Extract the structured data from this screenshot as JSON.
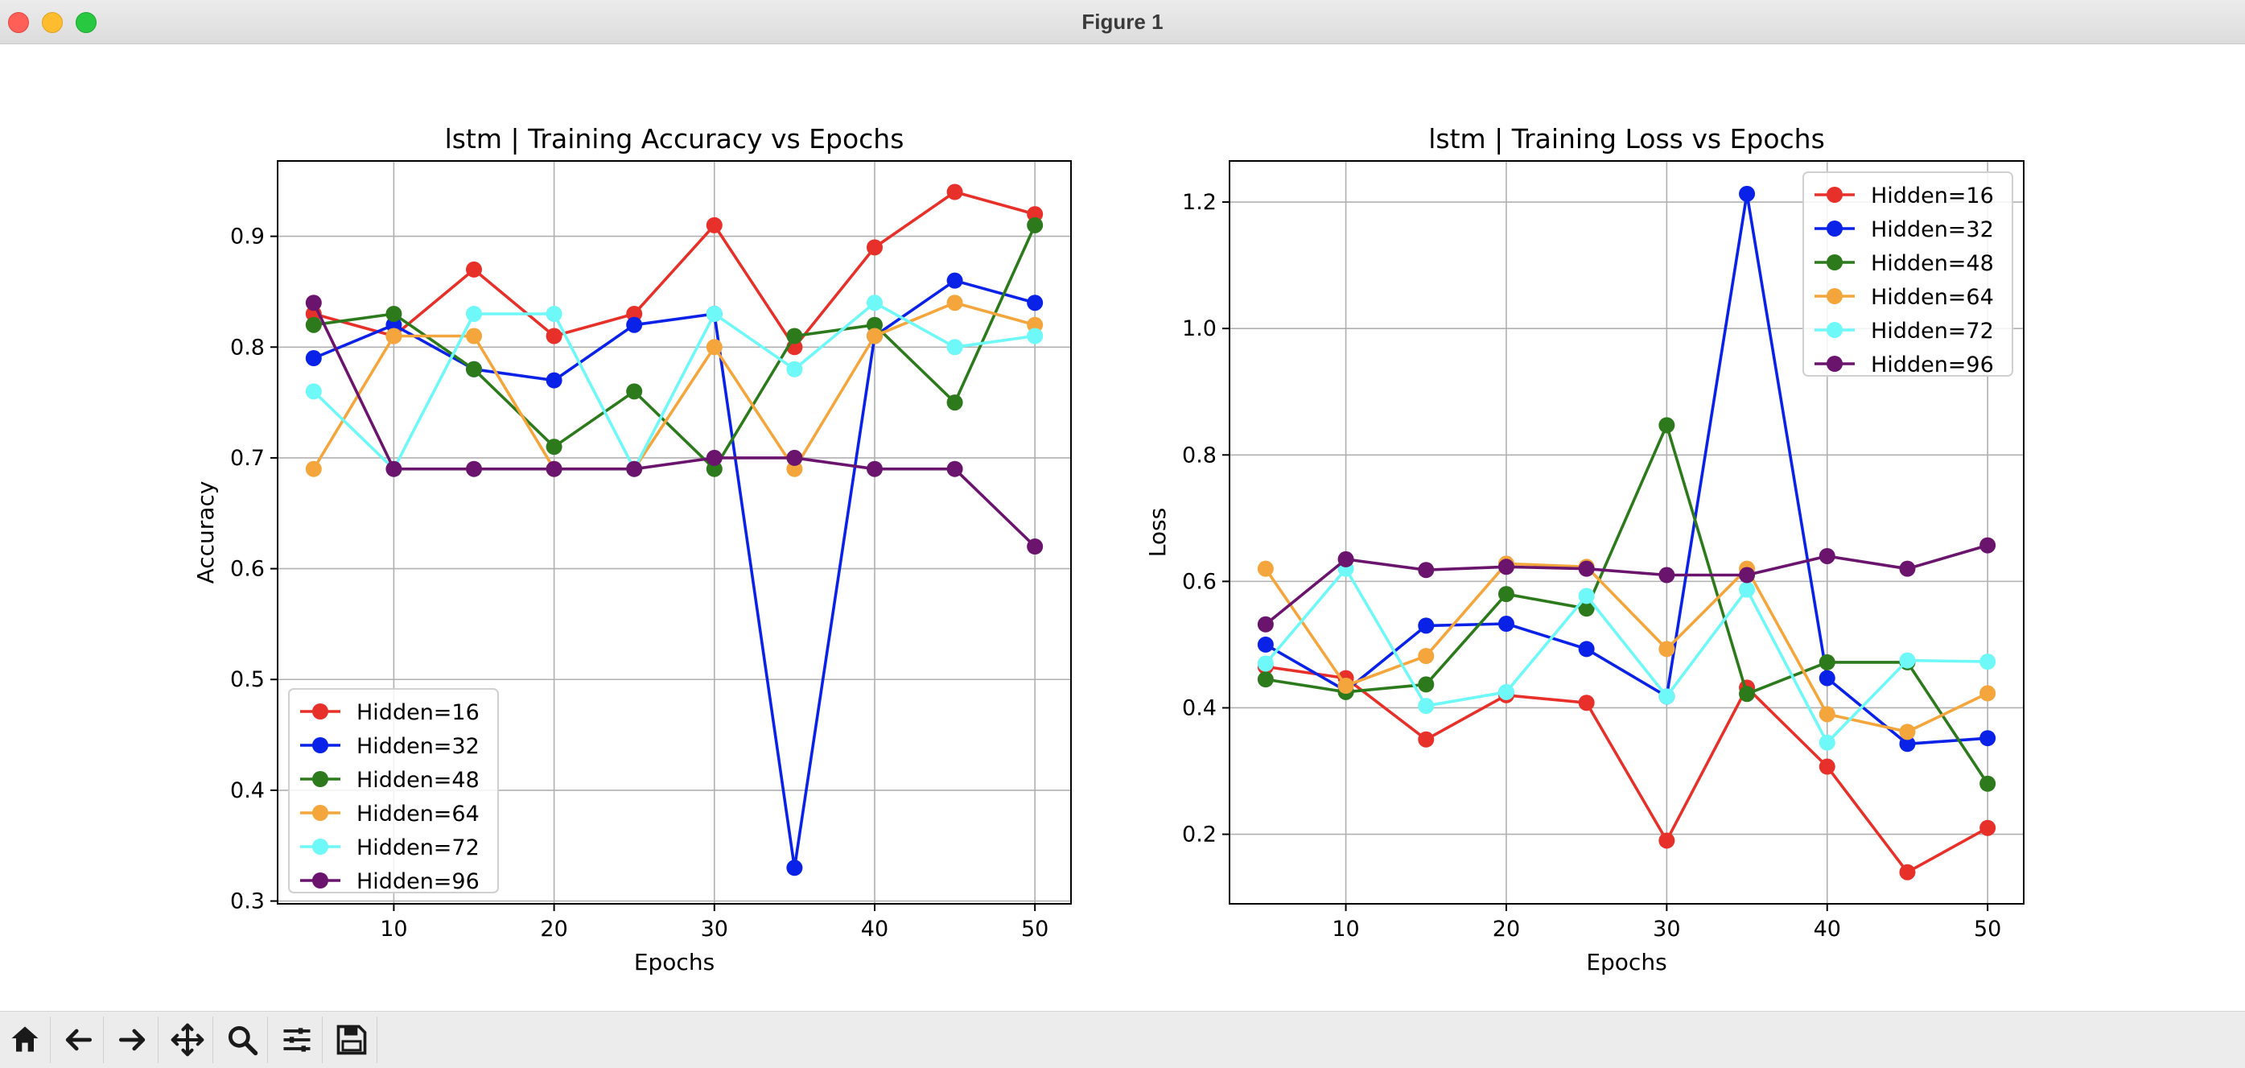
{
  "window": {
    "title": "Figure 1"
  },
  "toolbar": {
    "buttons": [
      {
        "name": "home-button",
        "icon": "home-icon"
      },
      {
        "name": "back-button",
        "icon": "arrow-left-icon"
      },
      {
        "name": "forward-button",
        "icon": "arrow-right-icon"
      },
      {
        "name": "pan-button",
        "icon": "move-icon"
      },
      {
        "name": "zoom-button",
        "icon": "magnifier-icon"
      },
      {
        "name": "configure-subplots-button",
        "icon": "sliders-icon"
      },
      {
        "name": "save-button",
        "icon": "floppy-disk-icon"
      }
    ]
  },
  "colors": {
    "Hidden=16": "#e8302a",
    "Hidden=32": "#0a22e8",
    "Hidden=48": "#2c7a1c",
    "Hidden=64": "#f4a53c",
    "Hidden=72": "#6ef8f8",
    "Hidden=96": "#6a146e"
  },
  "chart_data": [
    {
      "type": "line",
      "title": "lstm | Training Accuracy vs Epochs",
      "xlabel": "Epochs",
      "ylabel": "Accuracy",
      "x": [
        5,
        10,
        15,
        20,
        25,
        30,
        35,
        40,
        45,
        50
      ],
      "xlim": [
        2.75,
        52.25
      ],
      "ylim": [
        0.2975,
        0.968
      ],
      "xticks": [
        10,
        20,
        30,
        40,
        50
      ],
      "yticks": [
        0.3,
        0.4,
        0.5,
        0.6,
        0.7,
        0.8,
        0.9
      ],
      "ytick_labels": [
        "0.3",
        "0.4",
        "0.5",
        "0.6",
        "0.7",
        "0.8",
        "0.9"
      ],
      "grid": true,
      "legend": "lower-left",
      "series": [
        {
          "name": "Hidden=16",
          "values": [
            0.83,
            0.81,
            0.87,
            0.81,
            0.83,
            0.91,
            0.8,
            0.89,
            0.94,
            0.92
          ]
        },
        {
          "name": "Hidden=32",
          "values": [
            0.79,
            0.82,
            0.78,
            0.77,
            0.82,
            0.83,
            0.33,
            0.81,
            0.86,
            0.84
          ]
        },
        {
          "name": "Hidden=48",
          "values": [
            0.82,
            0.83,
            0.78,
            0.71,
            0.76,
            0.69,
            0.81,
            0.82,
            0.75,
            0.91
          ]
        },
        {
          "name": "Hidden=64",
          "values": [
            0.69,
            0.81,
            0.81,
            0.69,
            0.69,
            0.8,
            0.69,
            0.81,
            0.84,
            0.82
          ]
        },
        {
          "name": "Hidden=72",
          "values": [
            0.76,
            0.69,
            0.83,
            0.83,
            0.69,
            0.83,
            0.78,
            0.84,
            0.8,
            0.81
          ]
        },
        {
          "name": "Hidden=96",
          "values": [
            0.84,
            0.69,
            0.69,
            0.69,
            0.69,
            0.7,
            0.7,
            0.69,
            0.69,
            0.62
          ]
        }
      ]
    },
    {
      "type": "line",
      "title": "lstm | Training Loss vs Epochs",
      "xlabel": "Epochs",
      "ylabel": "Loss",
      "x": [
        5,
        10,
        15,
        20,
        25,
        30,
        35,
        40,
        45,
        50
      ],
      "xlim": [
        2.75,
        52.25
      ],
      "ylim": [
        0.09,
        1.265
      ],
      "xticks": [
        10,
        20,
        30,
        40,
        50
      ],
      "yticks": [
        0.2,
        0.4,
        0.6,
        0.8,
        1.0,
        1.2
      ],
      "ytick_labels": [
        "0.2",
        "0.4",
        "0.6",
        "0.8",
        "1.0",
        "1.2"
      ],
      "grid": true,
      "legend": "top-right",
      "series": [
        {
          "name": "Hidden=16",
          "values": [
            0.465,
            0.447,
            0.35,
            0.42,
            0.408,
            0.19,
            0.432,
            0.307,
            0.14,
            0.21
          ]
        },
        {
          "name": "Hidden=32",
          "values": [
            0.5,
            0.427,
            0.53,
            0.533,
            0.493,
            0.418,
            1.213,
            0.447,
            0.343,
            0.352
          ]
        },
        {
          "name": "Hidden=48",
          "values": [
            0.445,
            0.425,
            0.437,
            0.58,
            0.557,
            0.847,
            0.422,
            0.472,
            0.472,
            0.28
          ]
        },
        {
          "name": "Hidden=64",
          "values": [
            0.62,
            0.435,
            0.482,
            0.628,
            0.623,
            0.493,
            0.62,
            0.39,
            0.362,
            0.423
          ]
        },
        {
          "name": "Hidden=72",
          "values": [
            0.47,
            0.62,
            0.403,
            0.425,
            0.577,
            0.418,
            0.587,
            0.345,
            0.475,
            0.473
          ]
        },
        {
          "name": "Hidden=96",
          "values": [
            0.532,
            0.635,
            0.618,
            0.623,
            0.62,
            0.61,
            0.61,
            0.64,
            0.62,
            0.657
          ]
        }
      ]
    }
  ]
}
